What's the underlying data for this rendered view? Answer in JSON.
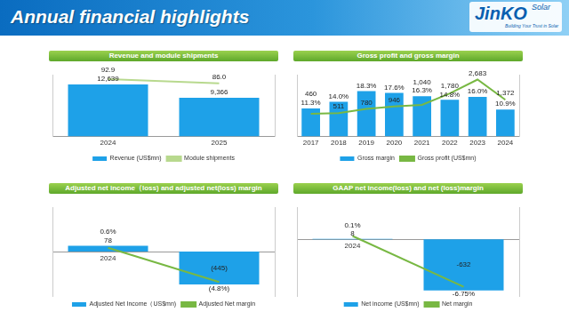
{
  "header": {
    "title": "Annual financial highlights",
    "logo": "JinKO",
    "logo_sub": "Solar",
    "tagline": "Building Your Trust in Solar"
  },
  "chart_data": [
    {
      "type": "bar",
      "title": "Revenue and module shipments",
      "categories": [
        "2024",
        "2025"
      ],
      "series": [
        {
          "name": "Revenue (US$mn)",
          "type": "bar",
          "color": "#1ea1e8",
          "values": [
            12639,
            9366
          ],
          "value_labels": [
            "12,639",
            "9,366"
          ]
        },
        {
          "name": "Module shipments",
          "type": "line",
          "color": "#b8d98e",
          "axis": "y2",
          "marker": "none",
          "line_style": "solid",
          "values": [
            92.9,
            86.0
          ],
          "value_labels": [
            "92.9",
            "86.0"
          ]
        }
      ],
      "ylim": [
        0,
        15000
      ],
      "y2lim": [
        0,
        100
      ],
      "grid": false,
      "legend": "bottom",
      "data_labels": true,
      "tick_labels": "x"
    },
    {
      "type": "bar",
      "title": "Gross profit and gross margin",
      "categories": [
        "2017",
        "2018",
        "2019",
        "2020",
        "2021",
        "2022",
        "2023",
        "2024"
      ],
      "series": [
        {
          "name": "Gross margin",
          "type": "bar",
          "color": "#1ea1e8",
          "values": [
            11.3,
            14.0,
            18.3,
            17.6,
            16.3,
            14.8,
            16.0,
            10.9
          ],
          "value_labels": [
            "11.3%",
            "14.0%",
            "18.3%",
            "17.6%",
            "16.3%",
            "14.8%",
            "16.0%",
            "10.9%"
          ]
        },
        {
          "name": "Gross profit (US$mn)",
          "type": "line",
          "color": "#78b843",
          "axis": "y2",
          "marker": "none",
          "line_style": "solid",
          "values": [
            460,
            511,
            780,
            946,
            1040,
            1780,
            2683,
            1372
          ],
          "value_labels": [
            "460",
            "511",
            "780",
            "946",
            "1,040",
            "1,780",
            "2,683",
            "1,372"
          ]
        }
      ],
      "ylim": [
        0,
        25
      ],
      "y2lim": [
        -1000,
        3000
      ],
      "grid": false,
      "legend": "bottom",
      "data_labels": true,
      "tick_labels": "x"
    },
    {
      "type": "bar",
      "title": "Adjusted net income（loss) and adjusted net(loss) margin",
      "categories": [
        "2024",
        "2025"
      ],
      "series": [
        {
          "name": "Adjusted Net Income（US$mn)",
          "type": "bar",
          "color": "#1ea1e8",
          "values": [
            78,
            -445
          ],
          "value_labels": [
            "78",
            "(445)"
          ]
        },
        {
          "name": "Adjusted Net margin",
          "type": "line",
          "color": "#78b843",
          "axis": "y2",
          "marker": "none",
          "line_style": "solid",
          "values": [
            0.6,
            -4.8
          ],
          "value_labels": [
            "0.6%",
            "(4.8%)"
          ]
        }
      ],
      "ylim": [
        -600,
        600
      ],
      "y2lim": [
        -7,
        7
      ],
      "grid": false,
      "legend": "bottom",
      "data_labels": true,
      "tick_labels": "x"
    },
    {
      "type": "bar",
      "title": "GAAP net income(loss) and net (loss)margin",
      "categories": [
        "2024",
        "2025"
      ],
      "series": [
        {
          "name": "Net income (US$mn)",
          "type": "bar",
          "color": "#1ea1e8",
          "values": [
            8,
            -632
          ]
        },
        {
          "name": "Net margin",
          "type": "line",
          "color": "#78b843",
          "axis": "y2",
          "marker": "none",
          "line_style": "solid",
          "values": [
            0.1,
            -6.75
          ],
          "value_labels": [
            "0.1%",
            "-6.75%"
          ]
        }
      ],
      "ylim": [
        -700,
        400
      ],
      "y2lim": [
        -8,
        4
      ],
      "grid": false,
      "legend": "bottom",
      "data_labels": true,
      "tick_labels": "x"
    }
  ]
}
